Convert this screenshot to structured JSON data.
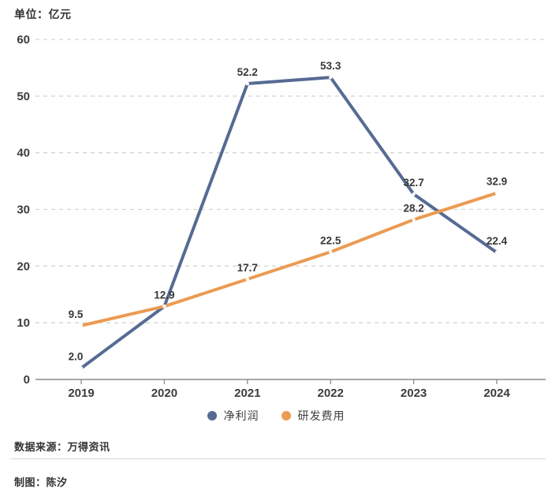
{
  "chart_data": {
    "type": "line",
    "unit_label": "单位：亿元",
    "title": "",
    "xlabel": "",
    "ylabel": "亿元",
    "categories": [
      "2019",
      "2020",
      "2021",
      "2022",
      "2023",
      "2024"
    ],
    "series": [
      {
        "name": "净利润",
        "color": "#566b93",
        "values": [
          2.0,
          12.9,
          52.2,
          53.3,
          32.7,
          22.4
        ],
        "point_labels": [
          "2.0",
          "",
          "52.2",
          "53.3",
          "32.7",
          "22.4"
        ]
      },
      {
        "name": "研发费用",
        "color": "#eb9b52",
        "values": [
          9.5,
          12.9,
          17.7,
          22.5,
          28.2,
          32.9
        ],
        "point_labels": [
          "9.5",
          "12.9",
          "17.7",
          "22.5",
          "28.2",
          "32.9"
        ]
      }
    ],
    "ylim": [
      0,
      60
    ],
    "yticks": [
      0,
      10,
      20,
      30,
      40,
      50,
      60
    ],
    "grid": "horizontal-dashed",
    "legend_position": "bottom",
    "colors": {
      "grid": "#d5d5d5",
      "axis": "#8c8c8c",
      "tick_text": "#3d3d3d",
      "point_label_text": "#383838",
      "marker_fill": "#ffffff"
    }
  },
  "footer": {
    "source": "数据来源：万得资讯",
    "credit": "制图：陈汐"
  }
}
